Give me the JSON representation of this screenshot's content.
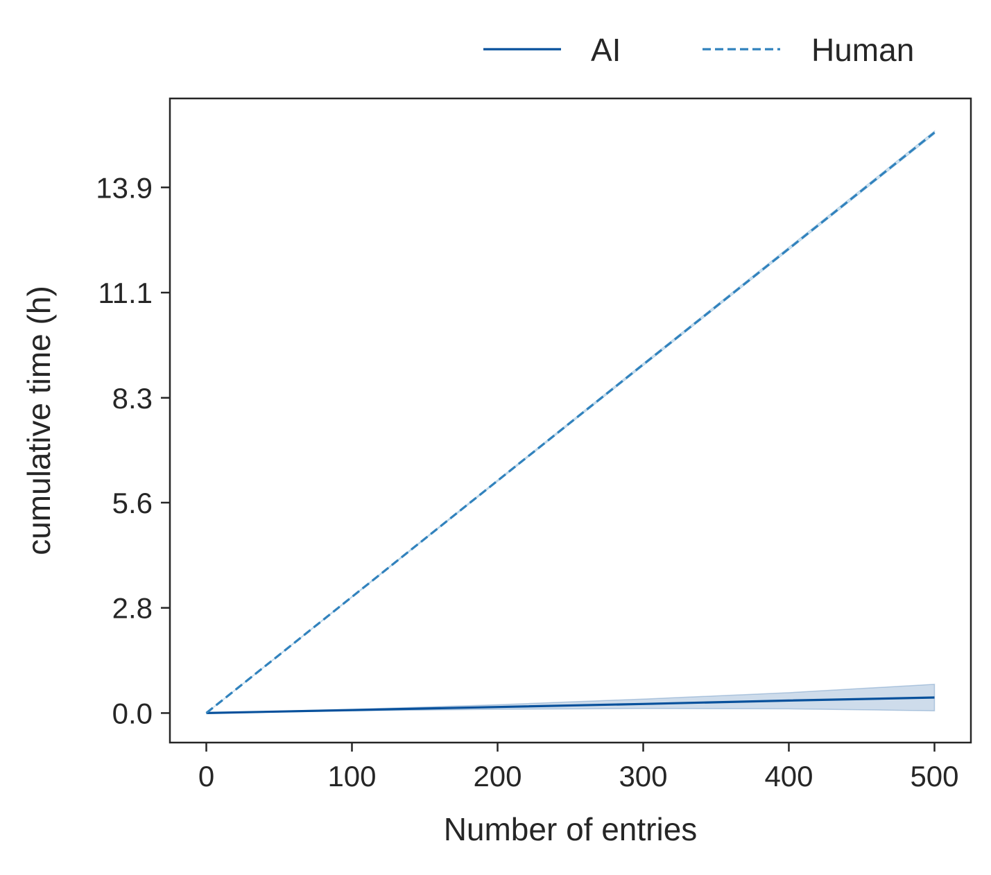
{
  "chart_data": {
    "type": "line",
    "title": "",
    "xlabel": "Number of entries",
    "ylabel": "cumulative time (h)",
    "xlim": [
      -25,
      525
    ],
    "ylim": [
      -0.78,
      16.24
    ],
    "x_ticks": [
      0,
      100,
      200,
      300,
      400,
      500
    ],
    "x_tick_labels": [
      "0",
      "100",
      "200",
      "300",
      "400",
      "500"
    ],
    "y_ticks": [
      0.0,
      2.78,
      5.56,
      8.33,
      11.11,
      13.89
    ],
    "y_tick_labels": [
      "0.0",
      "2.8",
      "5.6",
      "8.3",
      "11.1",
      "13.9"
    ],
    "grid": false,
    "legend": {
      "placement": "top-right, above plot",
      "columns": 2
    },
    "series": [
      {
        "name": "AI",
        "style": "solid",
        "color": "#08519c",
        "x": [
          0,
          100,
          200,
          300,
          400,
          500
        ],
        "y": [
          0.0,
          0.08,
          0.16,
          0.24,
          0.33,
          0.41
        ],
        "ci_lower": [
          0.0,
          0.06,
          0.1,
          0.12,
          0.11,
          0.06
        ],
        "ci_upper": [
          0.0,
          0.1,
          0.22,
          0.37,
          0.54,
          0.76
        ]
      },
      {
        "name": "Human",
        "style": "dashed",
        "color": "#3182bd",
        "x": [
          0,
          100,
          200,
          300,
          400,
          500
        ],
        "y": [
          0.0,
          3.07,
          6.14,
          9.21,
          12.27,
          15.34
        ],
        "ci_lower": [
          0.0,
          3.06,
          6.12,
          9.18,
          12.24,
          15.3
        ],
        "ci_upper": [
          0.0,
          3.08,
          6.16,
          9.24,
          12.31,
          15.38
        ]
      }
    ]
  }
}
